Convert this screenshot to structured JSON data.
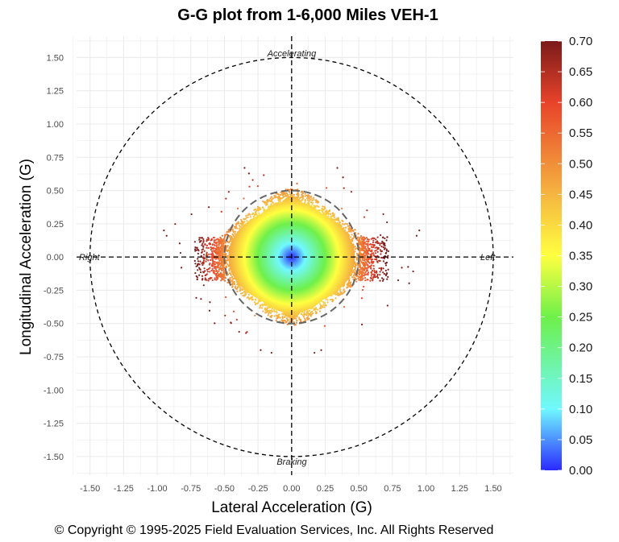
{
  "chart_data": {
    "type": "scatter",
    "title": "G-G plot from 1-6,000 Miles VEH-1",
    "xlabel": "Lateral Acceleration (G)",
    "ylabel": "Longitudinal Acceleration (G)",
    "xlim": [
      -1.6,
      1.65
    ],
    "ylim": [
      -1.64,
      1.66
    ],
    "grid": true,
    "x_ticks": [
      "-1.50",
      "-1.25",
      "-1.00",
      "-0.75",
      "-0.50",
      "-0.25",
      "0.00",
      "0.25",
      "0.50",
      "0.75",
      "1.00",
      "1.25",
      "1.50"
    ],
    "y_ticks": [
      "1.50",
      "1.25",
      "1.00",
      "0.75",
      "0.50",
      "0.25",
      "0.00",
      "-0.25",
      "-0.50",
      "-0.75",
      "-1.00",
      "-1.25",
      "-1.50"
    ],
    "reference_circles": [
      {
        "radius": 1.5,
        "color": "#000000"
      },
      {
        "radius": 0.5,
        "color": "#666666"
      }
    ],
    "annotations": {
      "top": "Accelerating",
      "bottom": "Braking",
      "left": "Right",
      "right": "Left"
    },
    "colorbar": {
      "range": [
        0,
        0.7
      ],
      "ticks": [
        "0.70",
        "0.65",
        "0.60",
        "0.55",
        "0.50",
        "0.45",
        "0.40",
        "0.35",
        "0.30",
        "0.25",
        "0.20",
        "0.15",
        "0.10",
        "0.05",
        "0.00"
      ],
      "stops": [
        {
          "value": 0.0,
          "color": "#2a2aff"
        },
        {
          "value": 0.1,
          "color": "#70f8ff"
        },
        {
          "value": 0.25,
          "color": "#6ef04a"
        },
        {
          "value": 0.35,
          "color": "#ffff40"
        },
        {
          "value": 0.45,
          "color": "#f5b540"
        },
        {
          "value": 0.6,
          "color": "#e8432a"
        },
        {
          "value": 0.7,
          "color": "#7a1a1a"
        }
      ]
    },
    "point_cloud": {
      "core_lateral_extent": 0.5,
      "core_longitudinal_extent": 0.45,
      "max_lateral": 0.97,
      "max_longitudinal": 0.67
    }
  },
  "footer": {
    "copyright": "© Copyright © 1995-2025 Field Evaluation Services, Inc. All Rights Reserved"
  }
}
